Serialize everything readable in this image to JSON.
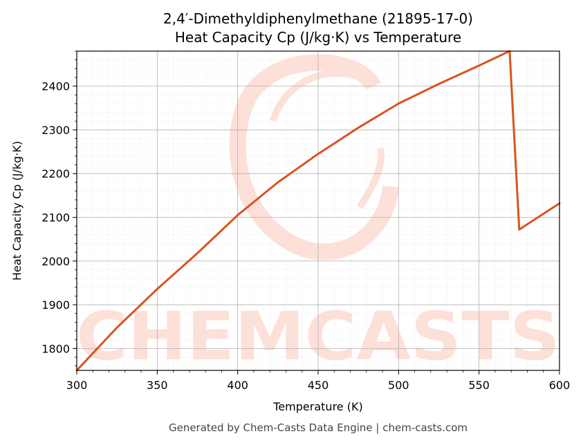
{
  "chart_data": {
    "type": "line",
    "title_line1": "2,4′-Dimethyldiphenylmethane (21895-17-0)",
    "title_line2": "Heat Capacity Cp (J/kg·K) vs Temperature",
    "xlabel": "Temperature (K)",
    "ylabel": "Heat Capacity Cp (J/kg·K)",
    "xlim": [
      300,
      600
    ],
    "ylim": [
      1750,
      2480
    ],
    "x_ticks": [
      300,
      350,
      400,
      450,
      500,
      550,
      600
    ],
    "y_ticks": [
      1800,
      1900,
      2000,
      2100,
      2200,
      2300,
      2400
    ],
    "grid": true,
    "series": [
      {
        "color": "#d9531e",
        "x": [
          300,
          325,
          350,
          375,
          400,
          425,
          450,
          475,
          500,
          525,
          550,
          569,
          575,
          600
        ],
        "y": [
          1750,
          1848,
          1936,
          2018,
          2105,
          2180,
          2245,
          2305,
          2360,
          2405,
          2447,
          2480,
          2072,
          2132
        ]
      }
    ],
    "watermark": "CHEMCASTS",
    "watermark_color": "#fde0d8"
  },
  "footer": "Generated by Chem-Casts Data Engine | chem-casts.com"
}
